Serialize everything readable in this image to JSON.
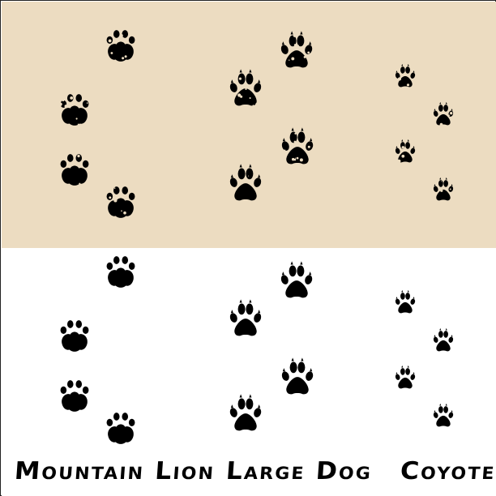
{
  "colors": {
    "top_background": "#ecdcc1",
    "bottom_background": "#ffffff",
    "print_color": "#000000",
    "border": "#222222"
  },
  "labels": {
    "mountain_lion": "Mountain Lion",
    "large_dog": "Large Dog",
    "coyote": "Coyote"
  }
}
